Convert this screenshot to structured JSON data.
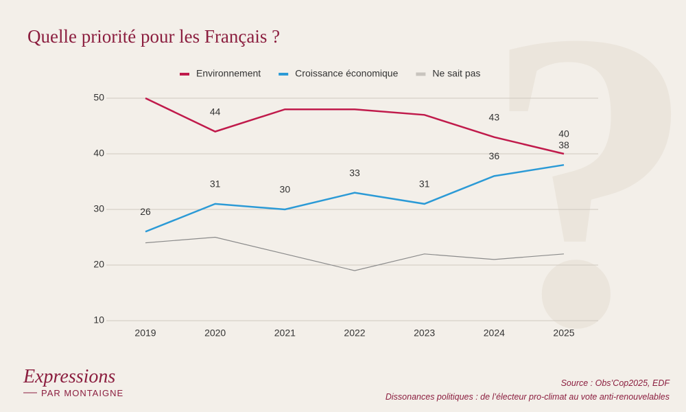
{
  "chart_data": {
    "type": "line",
    "title": "Quelle priorité pour les Français ?",
    "categories": [
      "2019",
      "2020",
      "2021",
      "2022",
      "2023",
      "2024",
      "2025"
    ],
    "series": [
      {
        "name": "Environnement",
        "color": "#c01a4b",
        "values": [
          50,
          44,
          48,
          48,
          47,
          43,
          40
        ],
        "value_labels": [
          null,
          "44",
          null,
          null,
          null,
          "43",
          "40"
        ]
      },
      {
        "name": "Croissance économique",
        "color": "#2b9ad6",
        "values": [
          26,
          31,
          30,
          33,
          31,
          36,
          38
        ],
        "value_labels": [
          "26",
          "31",
          "30",
          "33",
          "31",
          "36",
          "38"
        ]
      },
      {
        "name": "Ne sait pas",
        "color": "#8a8a8a",
        "values": [
          24,
          25,
          22,
          19,
          22,
          21,
          22
        ]
      }
    ],
    "ylim": [
      10,
      50
    ],
    "yticks": [
      10,
      20,
      30,
      40,
      50
    ],
    "grid": true
  },
  "branding": {
    "name": "Expressions",
    "subtitle": "PAR MONTAIGNE"
  },
  "source": {
    "line1": "Source : Obs’Cop2025, EDF",
    "line2": "Dissonances politiques : de l’électeur pro-climat au vote anti-renouvelables"
  }
}
